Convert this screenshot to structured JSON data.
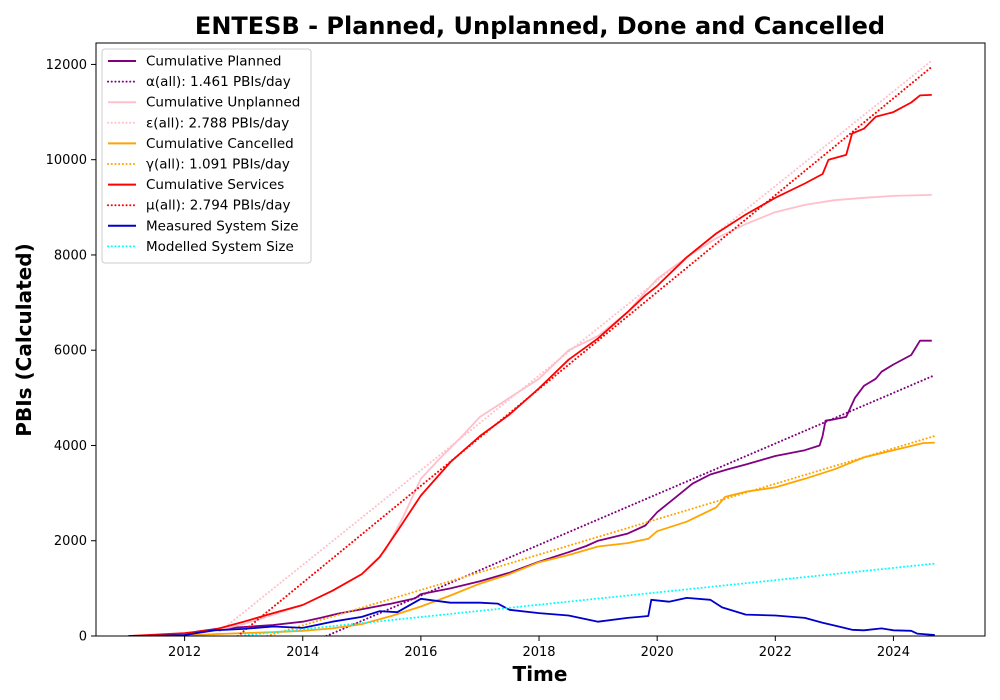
{
  "chart_data": {
    "type": "line",
    "title": "ENTESB - Planned, Unplanned, Done  and Cancelled",
    "xlabel": "Time",
    "ylabel": "PBIs (Calculated)",
    "xlim": [
      2010.5,
      2025.55
    ],
    "ylim": [
      0,
      12450
    ],
    "xticks": [
      2012,
      2014,
      2016,
      2018,
      2020,
      2022,
      2024
    ],
    "yticks": [
      0,
      2000,
      4000,
      6000,
      8000,
      10000,
      12000
    ],
    "grid": false,
    "legend_position": "upper-left",
    "series": [
      {
        "name": "Cumulative Planned",
        "color": "#800080",
        "style": "solid",
        "points": [
          [
            2011.05,
            0
          ],
          [
            2011.8,
            5
          ],
          [
            2012.2,
            90
          ],
          [
            2012.6,
            160
          ],
          [
            2013.0,
            190
          ],
          [
            2013.5,
            230
          ],
          [
            2014.0,
            300
          ],
          [
            2014.3,
            380
          ],
          [
            2014.6,
            470
          ],
          [
            2015.0,
            560
          ],
          [
            2015.5,
            680
          ],
          [
            2015.9,
            790
          ],
          [
            2016.0,
            880
          ],
          [
            2016.5,
            1000
          ],
          [
            2017.0,
            1150
          ],
          [
            2017.5,
            1330
          ],
          [
            2018.0,
            1560
          ],
          [
            2018.5,
            1760
          ],
          [
            2018.8,
            1890
          ],
          [
            2019.0,
            2000
          ],
          [
            2019.5,
            2150
          ],
          [
            2019.8,
            2320
          ],
          [
            2020.0,
            2600
          ],
          [
            2020.3,
            2900
          ],
          [
            2020.6,
            3200
          ],
          [
            2020.9,
            3390
          ],
          [
            2021.2,
            3500
          ],
          [
            2021.5,
            3600
          ],
          [
            2022.0,
            3780
          ],
          [
            2022.5,
            3900
          ],
          [
            2022.75,
            4000
          ],
          [
            2022.8,
            4200
          ],
          [
            2022.85,
            4520
          ],
          [
            2023.0,
            4550
          ],
          [
            2023.2,
            4600
          ],
          [
            2023.35,
            5000
          ],
          [
            2023.5,
            5250
          ],
          [
            2023.7,
            5400
          ],
          [
            2023.8,
            5550
          ],
          [
            2024.0,
            5700
          ],
          [
            2024.3,
            5900
          ],
          [
            2024.45,
            6200
          ],
          [
            2024.65,
            6200
          ]
        ]
      },
      {
        "name": "α(all): 1.461 PBIs/day",
        "color": "#800080",
        "style": "dotted",
        "points": [
          [
            2014.4,
            0
          ],
          [
            2024.65,
            5450
          ]
        ]
      },
      {
        "name": "Cumulative Unplanned",
        "color": "#ffc0cb",
        "style": "solid",
        "points": [
          [
            2011.05,
            0
          ],
          [
            2012.0,
            40
          ],
          [
            2012.5,
            110
          ],
          [
            2013.0,
            250
          ],
          [
            2013.5,
            450
          ],
          [
            2014.0,
            650
          ],
          [
            2014.5,
            950
          ],
          [
            2015.0,
            1300
          ],
          [
            2015.4,
            1800
          ],
          [
            2015.7,
            2500
          ],
          [
            2016.0,
            3300
          ],
          [
            2016.3,
            3700
          ],
          [
            2016.7,
            4200
          ],
          [
            2017.0,
            4600
          ],
          [
            2017.5,
            5000
          ],
          [
            2018.0,
            5400
          ],
          [
            2018.5,
            6000
          ],
          [
            2019.0,
            6300
          ],
          [
            2019.5,
            6800
          ],
          [
            2020.0,
            7500
          ],
          [
            2020.5,
            7950
          ],
          [
            2021.0,
            8350
          ],
          [
            2021.5,
            8650
          ],
          [
            2022.0,
            8900
          ],
          [
            2022.5,
            9050
          ],
          [
            2023.0,
            9150
          ],
          [
            2023.5,
            9200
          ],
          [
            2024.0,
            9240
          ],
          [
            2024.65,
            9260
          ]
        ]
      },
      {
        "name": "ε(all): 2.788 PBIs/day",
        "color": "#ffc0cb",
        "style": "dotted",
        "points": [
          [
            2012.5,
            0
          ],
          [
            2024.65,
            12080
          ]
        ]
      },
      {
        "name": "Cumulative Cancelled",
        "color": "#ffa500",
        "style": "solid",
        "points": [
          [
            2011.05,
            0
          ],
          [
            2012.0,
            10
          ],
          [
            2012.5,
            40
          ],
          [
            2013.0,
            60
          ],
          [
            2013.5,
            80
          ],
          [
            2014.0,
            110
          ],
          [
            2014.5,
            160
          ],
          [
            2015.0,
            250
          ],
          [
            2015.5,
            420
          ],
          [
            2016.0,
            620
          ],
          [
            2016.5,
            850
          ],
          [
            2017.0,
            1100
          ],
          [
            2017.5,
            1300
          ],
          [
            2018.0,
            1550
          ],
          [
            2018.5,
            1700
          ],
          [
            2019.0,
            1880
          ],
          [
            2019.5,
            1950
          ],
          [
            2019.85,
            2040
          ],
          [
            2020.0,
            2200
          ],
          [
            2020.5,
            2400
          ],
          [
            2021.0,
            2700
          ],
          [
            2021.15,
            2920
          ],
          [
            2021.5,
            3030
          ],
          [
            2022.0,
            3120
          ],
          [
            2022.5,
            3300
          ],
          [
            2023.0,
            3500
          ],
          [
            2023.5,
            3750
          ],
          [
            2024.0,
            3900
          ],
          [
            2024.5,
            4050
          ],
          [
            2024.7,
            4060
          ]
        ]
      },
      {
        "name": "γ(all): 1.091 PBIs/day",
        "color": "#ffa500",
        "style": "dotted",
        "points": [
          [
            2013.4,
            0
          ],
          [
            2024.7,
            4200
          ]
        ]
      },
      {
        "name": "Cumulative Services",
        "color": "#ff0000",
        "style": "solid",
        "points": [
          [
            2011.05,
            0
          ],
          [
            2012.0,
            60
          ],
          [
            2012.5,
            130
          ],
          [
            2013.0,
            300
          ],
          [
            2013.5,
            480
          ],
          [
            2014.0,
            650
          ],
          [
            2014.5,
            950
          ],
          [
            2015.0,
            1300
          ],
          [
            2015.3,
            1650
          ],
          [
            2015.6,
            2200
          ],
          [
            2016.0,
            2950
          ],
          [
            2016.5,
            3650
          ],
          [
            2017.0,
            4200
          ],
          [
            2017.5,
            4650
          ],
          [
            2018.0,
            5200
          ],
          [
            2018.5,
            5800
          ],
          [
            2019.0,
            6250
          ],
          [
            2019.5,
            6800
          ],
          [
            2019.8,
            7150
          ],
          [
            2020.0,
            7350
          ],
          [
            2020.5,
            7950
          ],
          [
            2021.0,
            8450
          ],
          [
            2021.5,
            8850
          ],
          [
            2022.0,
            9200
          ],
          [
            2022.5,
            9500
          ],
          [
            2022.8,
            9700
          ],
          [
            2022.9,
            10000
          ],
          [
            2023.2,
            10100
          ],
          [
            2023.3,
            10550
          ],
          [
            2023.5,
            10650
          ],
          [
            2023.7,
            10900
          ],
          [
            2024.0,
            11000
          ],
          [
            2024.3,
            11200
          ],
          [
            2024.45,
            11350
          ],
          [
            2024.65,
            11360
          ]
        ]
      },
      {
        "name": "μ(all): 2.794 PBIs/day",
        "color": "#ff0000",
        "style": "dotted",
        "points": [
          [
            2012.9,
            0
          ],
          [
            2024.65,
            11950
          ]
        ]
      },
      {
        "name": "Measured System Size",
        "color": "#0000cd",
        "style": "solid",
        "points": [
          [
            2011.05,
            0
          ],
          [
            2011.5,
            5
          ],
          [
            2012.0,
            20
          ],
          [
            2012.3,
            80
          ],
          [
            2012.5,
            120
          ],
          [
            2013.0,
            150
          ],
          [
            2013.5,
            200
          ],
          [
            2014.0,
            170
          ],
          [
            2014.5,
            300
          ],
          [
            2015.0,
            400
          ],
          [
            2015.3,
            520
          ],
          [
            2015.6,
            500
          ],
          [
            2016.0,
            780
          ],
          [
            2016.5,
            700
          ],
          [
            2017.0,
            700
          ],
          [
            2017.3,
            680
          ],
          [
            2017.5,
            550
          ],
          [
            2018.0,
            480
          ],
          [
            2018.5,
            430
          ],
          [
            2018.8,
            350
          ],
          [
            2019.0,
            300
          ],
          [
            2019.5,
            380
          ],
          [
            2019.85,
            420
          ],
          [
            2019.9,
            760
          ],
          [
            2020.2,
            720
          ],
          [
            2020.5,
            800
          ],
          [
            2020.9,
            760
          ],
          [
            2021.1,
            600
          ],
          [
            2021.5,
            450
          ],
          [
            2022.0,
            430
          ],
          [
            2022.5,
            380
          ],
          [
            2022.8,
            280
          ],
          [
            2023.0,
            220
          ],
          [
            2023.3,
            130
          ],
          [
            2023.5,
            120
          ],
          [
            2023.8,
            160
          ],
          [
            2024.0,
            120
          ],
          [
            2024.3,
            110
          ],
          [
            2024.4,
            50
          ],
          [
            2024.7,
            20
          ]
        ]
      },
      {
        "name": "Modelled System Size",
        "color": "#00ffff",
        "style": "dotted",
        "points": [
          [
            2012.9,
            0
          ],
          [
            2024.7,
            1520
          ]
        ]
      }
    ]
  }
}
